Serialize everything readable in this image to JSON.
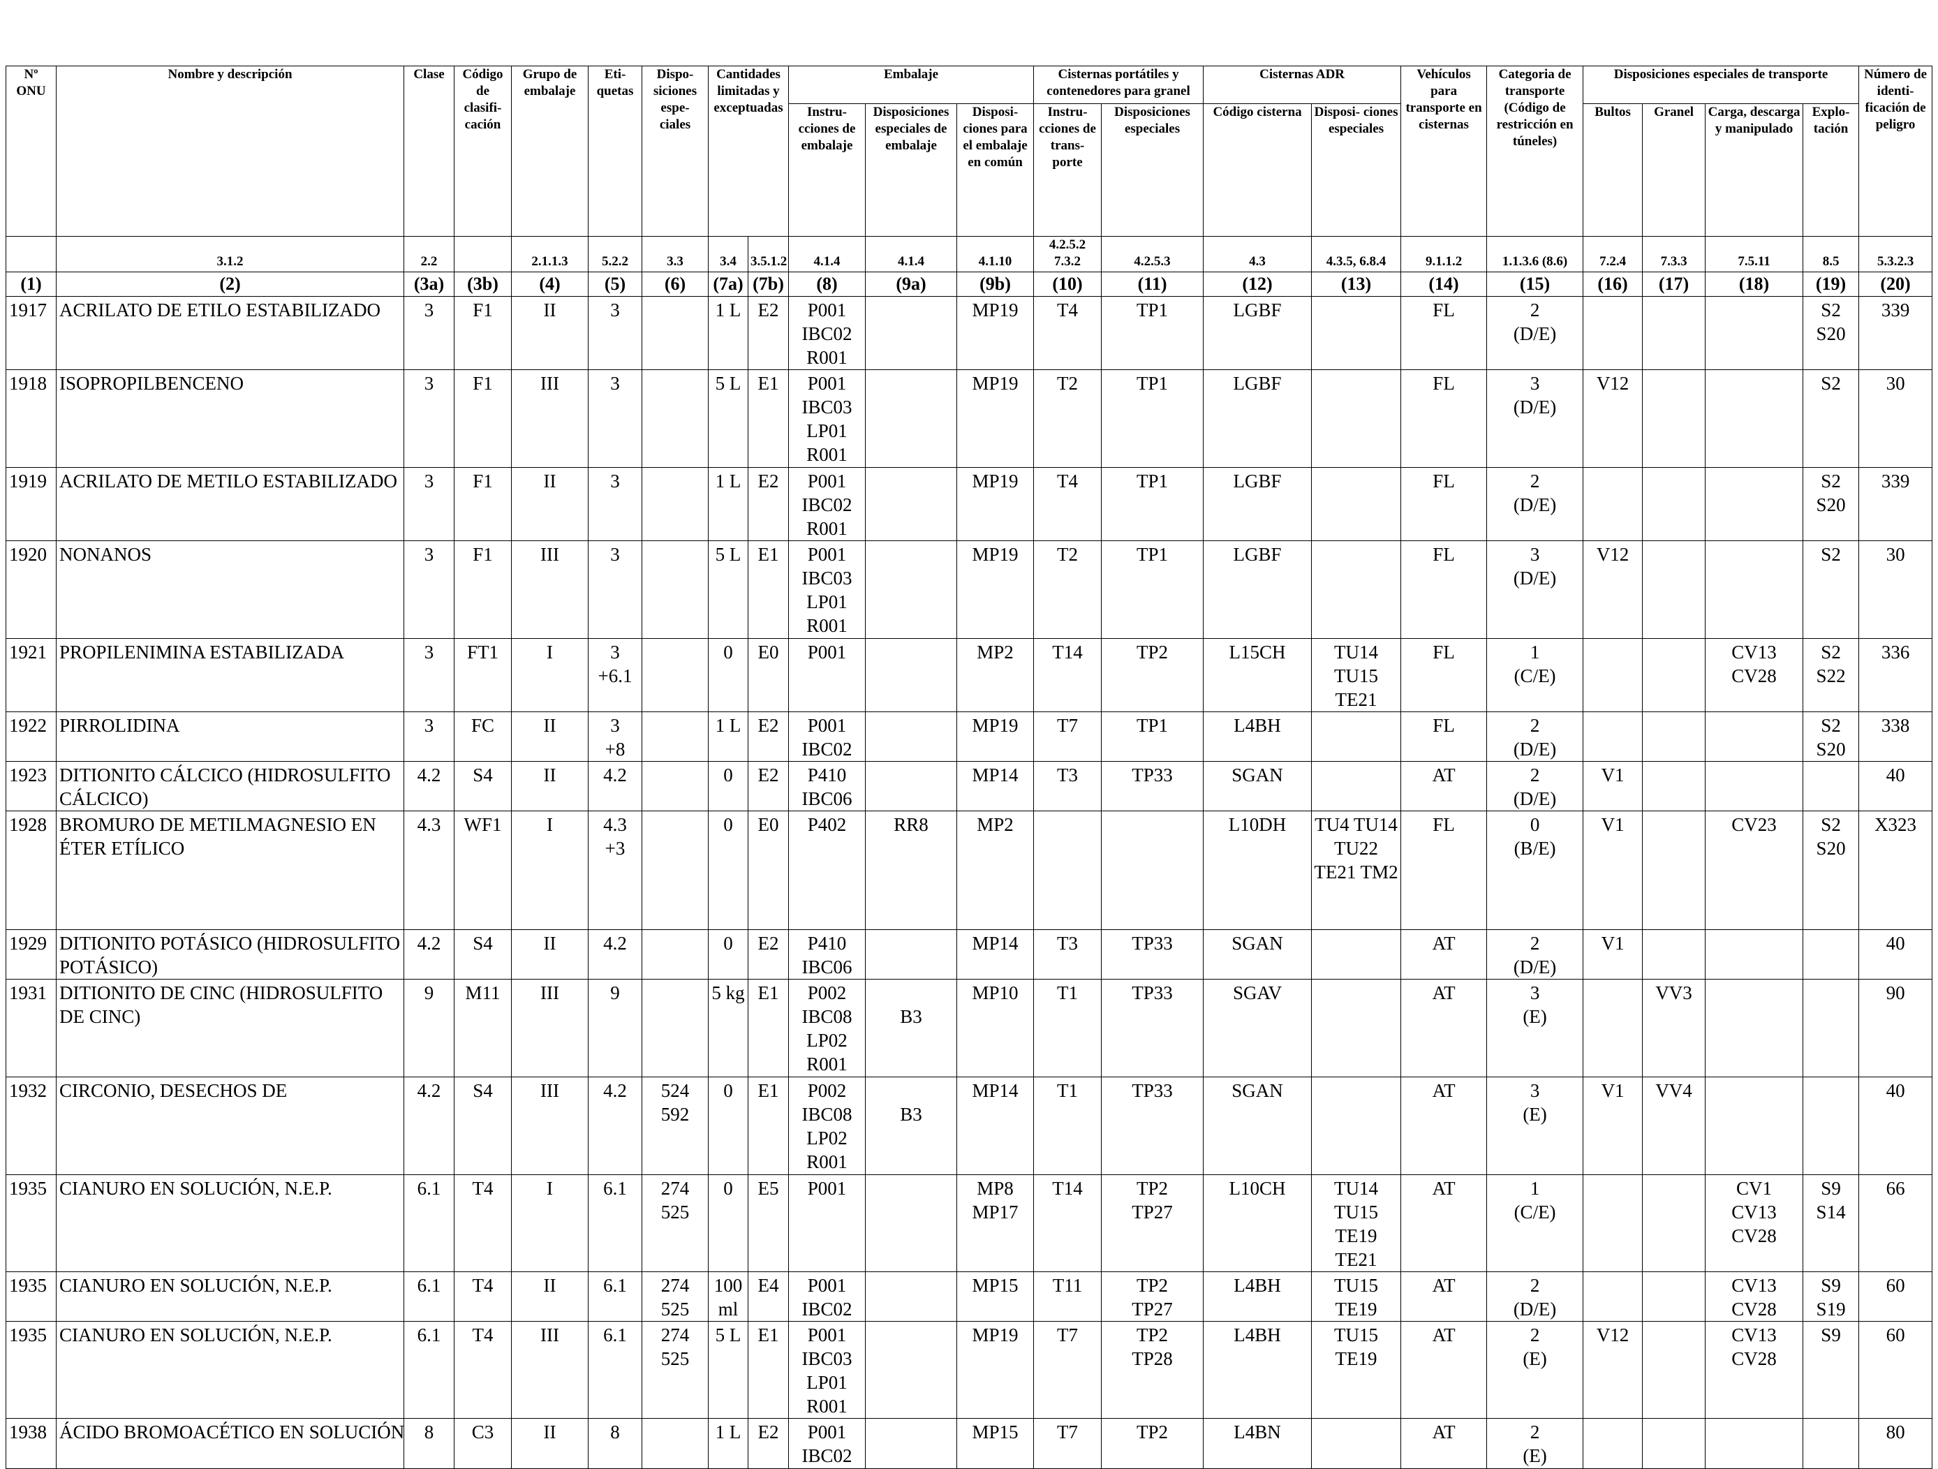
{
  "headers": {
    "un": "Nº ONU",
    "name": "Nombre y descripción",
    "clase": "Clase",
    "codigo": "Código de clasifi- cación",
    "grupo": "Grupo de embalaje",
    "etiq": "Eti- quetas",
    "disp": "Dispo- siciones espe- ciales",
    "cant": "Cantidades limitadas y exceptuadas",
    "emb": "Embalaje",
    "emb_instr": "Instru- cciones de embalaje",
    "emb_disp": "Disposiciones especiales de embalaje",
    "emb_comun": "Disposi- ciones para el embalaje en común",
    "port": "Cisternas portátiles y contenedores para granel",
    "port_instr": "Instru- cciones de trans- porte",
    "port_disp": "Disposiciones especiales",
    "adr": "Cisternas ADR",
    "adr_cod": "Código cisterna",
    "adr_disp": "Disposi- ciones especiales",
    "veh": "Vehículos para transporte en cisternas",
    "cat": "Categoria de transporte (Código de restricción en túneles)",
    "dtr": "Disposiciones especiales de transporte",
    "bultos": "Bultos",
    "granel": "Granel",
    "carga": "Carga, descarga y manipulado",
    "explo": "Explo- tación",
    "peligro": "Número de identi- ficación de peligro"
  },
  "refs": [
    "",
    "3.1.2",
    "2.2",
    "",
    "2.1.1.3",
    "5.2.2",
    "3.3",
    "3.4",
    "3.5.1.2",
    "4.1.4",
    "4.1.4",
    "4.1.10",
    "4.2.5.2 7.3.2",
    "4.2.5.3",
    "4.3",
    "4.3.5, 6.8.4",
    "9.1.1.2",
    "1.1.3.6 (8.6)",
    "7.2.4",
    "7.3.3",
    "7.5.11",
    "8.5",
    "5.3.2.3"
  ],
  "col_numbers": [
    "(1)",
    "(2)",
    "(3a)",
    "(3b)",
    "(4)",
    "(5)",
    "(6)",
    "(7a)",
    "(7b)",
    "(8)",
    "(9a)",
    "(9b)",
    "(10)",
    "(11)",
    "(12)",
    "(13)",
    "(14)",
    "(15)",
    "(16)",
    "(17)",
    "(18)",
    "(19)",
    "(20)"
  ],
  "rows": [
    [
      "1917",
      "ACRILATO DE ETILO ESTABILIZADO",
      "3",
      "F1",
      "II",
      "3",
      "",
      "1 L",
      "E2",
      "P001\nIBC02\nR001",
      "",
      "MP19",
      "T4",
      "TP1",
      "LGBF",
      "",
      "FL",
      "2\n(D/E)",
      "",
      "",
      "",
      "S2\nS20",
      "339"
    ],
    [
      "1918",
      "ISOPROPILBENCENO",
      "3",
      "F1",
      "III",
      "3",
      "",
      "5 L",
      "E1",
      "P001\nIBC03\nLP01\nR001",
      "",
      "MP19",
      "T2",
      "TP1",
      "LGBF",
      "",
      "FL",
      "3\n(D/E)",
      "V12",
      "",
      "",
      "S2",
      "30"
    ],
    [
      "1919",
      "ACRILATO DE METILO ESTABILIZADO",
      "3",
      "F1",
      "II",
      "3",
      "",
      "1 L",
      "E2",
      "P001\nIBC02\nR001",
      "",
      "MP19",
      "T4",
      "TP1",
      "LGBF",
      "",
      "FL",
      "2\n(D/E)",
      "",
      "",
      "",
      "S2\nS20",
      "339"
    ],
    [
      "1920",
      "NONANOS",
      "3",
      "F1",
      "III",
      "3",
      "",
      "5 L",
      "E1",
      "P001\nIBC03\nLP01\nR001",
      "",
      "MP19",
      "T2",
      "TP1",
      "LGBF",
      "",
      "FL",
      "3\n(D/E)",
      "V12",
      "",
      "",
      "S2",
      "30"
    ],
    [
      "1921",
      "PROPILENIMINA ESTABILIZADA",
      "3",
      "FT1",
      "I",
      "3\n+6.1",
      "",
      "0",
      "E0",
      "P001",
      "",
      "MP2",
      "T14",
      "TP2",
      "L15CH",
      "TU14\nTU15\nTE21",
      "FL",
      "1\n(C/E)",
      "",
      "",
      "CV13\nCV28",
      "S2\nS22",
      "336"
    ],
    [
      "1922",
      "PIRROLIDINA",
      "3",
      "FC",
      "II",
      "3\n+8",
      "",
      "1 L",
      "E2",
      "P001\nIBC02",
      "",
      "MP19",
      "T7",
      "TP1",
      "L4BH",
      "",
      "FL",
      "2\n(D/E)",
      "",
      "",
      "",
      "S2\nS20",
      "338"
    ],
    [
      "1923",
      "DITIONITO CÁLCICO (HIDROSULFITO\nCÁLCICO)",
      "4.2",
      "S4",
      "II",
      "4.2",
      "",
      "0",
      "E2",
      "P410\nIBC06",
      "",
      "MP14",
      "T3",
      "TP33",
      "SGAN",
      "",
      "AT",
      "2\n(D/E)",
      "V1",
      "",
      "",
      "",
      "40"
    ],
    [
      "1928",
      "BROMURO DE METILMAGNESIO EN\nÉTER ETÍLICO",
      "4.3",
      "WF1",
      "I",
      "4.3\n+3",
      "",
      "0",
      "E0",
      "P402",
      "RR8",
      "MP2",
      "",
      "",
      "L10DH",
      "TU4 TU14\nTU22\nTE21 TM2",
      "FL",
      "0\n(B/E)",
      "V1",
      "",
      "CV23",
      "S2\nS20",
      "X323"
    ],
    [
      "1929",
      "DITIONITO POTÁSICO (HIDROSULFITO\nPOTÁSICO)",
      "4.2",
      "S4",
      "II",
      "4.2",
      "",
      "0",
      "E2",
      "P410\nIBC06",
      "",
      "MP14",
      "T3",
      "TP33",
      "SGAN",
      "",
      "AT",
      "2\n(D/E)",
      "V1",
      "",
      "",
      "",
      "40"
    ],
    [
      "1931",
      "DITIONITO DE CINC (HIDROSULFITO\nDE CINC)",
      "9",
      "M11",
      "III",
      "9",
      "",
      "5 kg",
      "E1",
      "P002\nIBC08\nLP02\nR001",
      "\nB3",
      "MP10",
      "T1",
      "TP33",
      "SGAV",
      "",
      "AT",
      "3\n(E)",
      "",
      "VV3",
      "",
      "",
      "90"
    ],
    [
      "1932",
      "CIRCONIO, DESECHOS DE",
      "4.2",
      "S4",
      "III",
      "4.2",
      "524\n592",
      "0",
      "E1",
      "P002\nIBC08\nLP02\nR001",
      "\nB3",
      "MP14",
      "T1",
      "TP33",
      "SGAN",
      "",
      "AT",
      "3\n(E)",
      "V1",
      "VV4",
      "",
      "",
      "40"
    ],
    [
      "1935",
      "CIANURO EN SOLUCIÓN, N.E.P.",
      "6.1",
      "T4",
      "I",
      "6.1",
      "274\n525",
      "0",
      "E5",
      "P001",
      "",
      "MP8\nMP17",
      "T14",
      "TP2\nTP27",
      "L10CH",
      "TU14\nTU15\nTE19\nTE21",
      "AT",
      "1\n(C/E)",
      "",
      "",
      "CV1\nCV13\nCV28",
      "S9\nS14",
      "66"
    ],
    [
      "1935",
      "CIANURO EN SOLUCIÓN, N.E.P.",
      "6.1",
      "T4",
      "II",
      "6.1",
      "274\n525",
      "100\nml",
      "E4",
      "P001\nIBC02",
      "",
      "MP15",
      "T11",
      "TP2\nTP27",
      "L4BH",
      "TU15\nTE19",
      "AT",
      "2\n(D/E)",
      "",
      "",
      "CV13\nCV28",
      "S9\nS19",
      "60"
    ],
    [
      "1935",
      "CIANURO EN SOLUCIÓN, N.E.P.",
      "6.1",
      "T4",
      "III",
      "6.1",
      "274\n525",
      "5 L",
      "E1",
      "P001\nIBC03\nLP01\nR001",
      "",
      "MP19",
      "T7",
      "TP2\nTP28",
      "L4BH",
      "TU15\nTE19",
      "AT",
      "2\n(E)",
      "V12",
      "",
      "CV13\nCV28",
      "S9",
      "60"
    ],
    [
      "1938",
      "ÁCIDO BROMOACÉTICO EN SOLUCIÓN",
      "8",
      "C3",
      "II",
      "8",
      "",
      "1 L",
      "E2",
      "P001\nIBC02",
      "",
      "MP15",
      "T7",
      "TP2",
      "L4BN",
      "",
      "AT",
      "2\n(E)",
      "",
      "",
      "",
      "",
      "80"
    ]
  ]
}
